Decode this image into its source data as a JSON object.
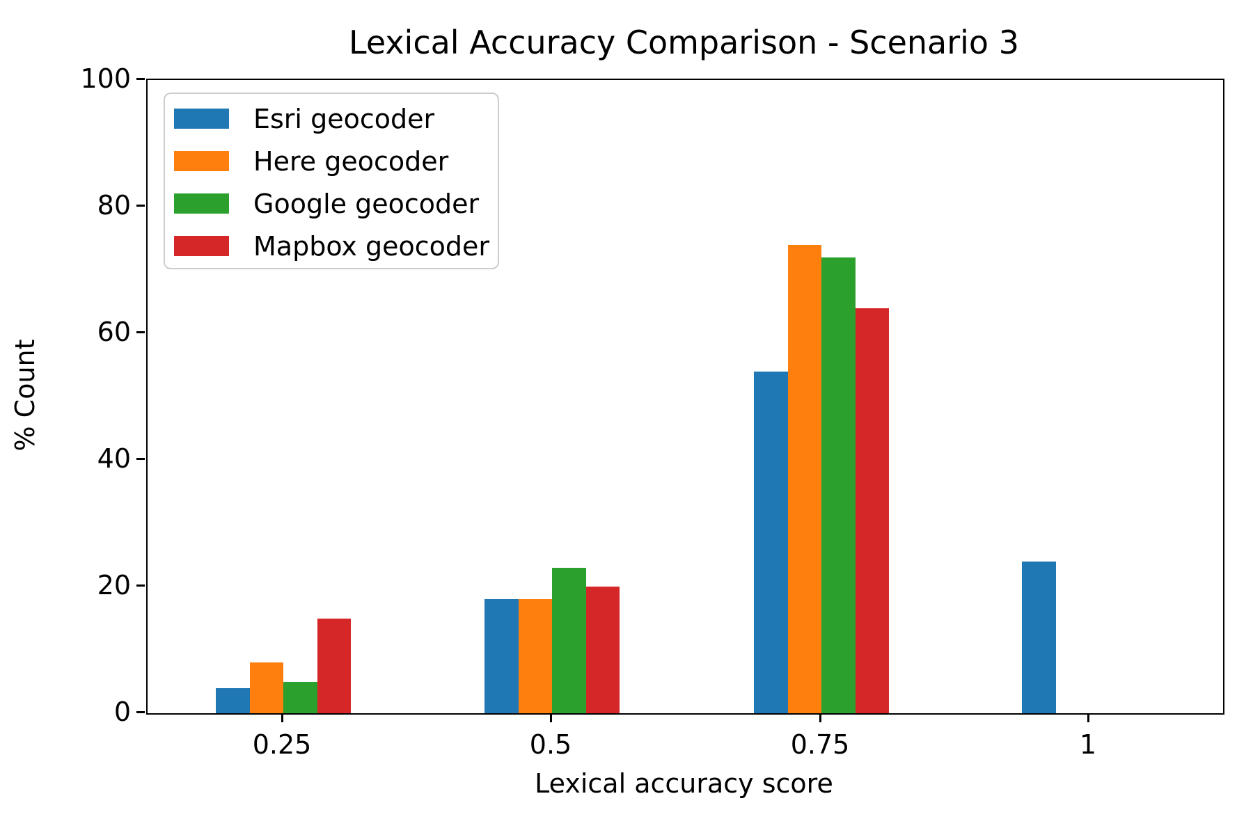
{
  "chart_data": {
    "type": "bar",
    "title": "Lexical Accuracy Comparison - Scenario 3",
    "xlabel": "Lexical accuracy score",
    "ylabel": "% Count",
    "categories": [
      "0.25",
      "0.5",
      "0.75",
      "1"
    ],
    "series": [
      {
        "name": "Esri geocoder",
        "color": "#1f77b4",
        "values": [
          4,
          18,
          54,
          24
        ]
      },
      {
        "name": "Here geocoder",
        "color": "#ff7f0e",
        "values": [
          8,
          18,
          74,
          0
        ]
      },
      {
        "name": "Google geocoder",
        "color": "#2ca02c",
        "values": [
          5,
          23,
          72,
          0
        ]
      },
      {
        "name": "Mapbox geocoder",
        "color": "#d62728",
        "values": [
          15,
          20,
          64,
          0
        ]
      }
    ],
    "ylim": [
      0,
      100
    ],
    "yticks": [
      0,
      20,
      40,
      60,
      80,
      100
    ],
    "grid": false,
    "legend_position": "upper left"
  }
}
